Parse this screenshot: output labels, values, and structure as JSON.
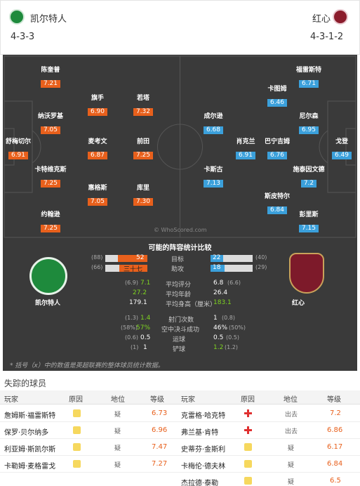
{
  "header": {
    "home_name": "凯尔特人",
    "home_formation": "4-3-3",
    "away_name": "红心",
    "away_formation": "4-3-1-2"
  },
  "pitch": {
    "home_players": [
      {
        "name": "陈奎普",
        "rating": "7.21"
      },
      {
        "name": "旗手",
        "rating": "6.90"
      },
      {
        "name": "若塔",
        "rating": "7.32"
      },
      {
        "name": "纳沃罗基",
        "rating": "7.05"
      },
      {
        "name": "舒梅切尔",
        "rating": "6.91"
      },
      {
        "name": "麦考文",
        "rating": "6.87"
      },
      {
        "name": "前田",
        "rating": "7.25"
      },
      {
        "name": "卡特维克斯",
        "rating": "7.25"
      },
      {
        "name": "惠格斯",
        "rating": "7.05"
      },
      {
        "name": "库里",
        "rating": "7.30"
      },
      {
        "name": "约翰逊",
        "rating": "7.25"
      }
    ],
    "away_players": [
      {
        "name": "福雷斯特",
        "rating": "6.71"
      },
      {
        "name": "卡图姆",
        "rating": "6.46"
      },
      {
        "name": "成尔逊",
        "rating": "6.68"
      },
      {
        "name": "尼尔森",
        "rating": "6.95"
      },
      {
        "name": "肖克兰",
        "rating": "6.91"
      },
      {
        "name": "巴宁吉姆",
        "rating": "6.76"
      },
      {
        "name": "戈登",
        "rating": "6.49"
      },
      {
        "name": "卡斯古",
        "rating": "7.13"
      },
      {
        "name": "施泰因文德",
        "rating": "7.2"
      },
      {
        "name": "斯皮特尔",
        "rating": "6.84"
      },
      {
        "name": "彭里斯",
        "rating": "7.15"
      }
    ],
    "watermark": "© WhoScored.com"
  },
  "stats": {
    "title": "可能的阵容统计比较",
    "home_team": "凯尔特人",
    "away_team": "红心",
    "goals": {
      "label": "目标",
      "home_bracket": "(88)",
      "home": "52",
      "away": "22",
      "away_bracket": "(40)",
      "home_frac": 0.7,
      "away_frac": 0.3
    },
    "assists": {
      "label": "助攻",
      "home_bracket": "(66)",
      "home": "三十七",
      "away": "18",
      "away_bracket": "(29)",
      "home_frac": 0.67,
      "away_frac": 0.33
    },
    "rows1": [
      {
        "home_bracket": "(6.9)",
        "home": "7.1",
        "label": "平均评分",
        "away": "6.8",
        "away_bracket": "(6.6)"
      },
      {
        "home_bracket": "",
        "home": "27.2",
        "label": "平均年龄",
        "away": "26.4",
        "away_bracket": ""
      },
      {
        "home_bracket": "",
        "home": "179.1",
        "label": "平均身高（厘米）",
        "away": "183.1",
        "away_bracket": ""
      }
    ],
    "rows2": [
      {
        "home_bracket": "(1.3)",
        "home": "1.4",
        "label": "射门次数",
        "away": "1",
        "away_bracket": "(0.8)"
      },
      {
        "home_bracket": "(58%)",
        "home": "57%",
        "label": "空中决斗成功",
        "away": "46%",
        "away_bracket": "(50%)"
      },
      {
        "home_bracket": "(0.6)",
        "home": "0.5",
        "label": "运球",
        "away": "0.5",
        "away_bracket": "(0.5)"
      },
      {
        "home_bracket": "(1)",
        "home": "1",
        "label": "铲球",
        "away": "1.2",
        "away_bracket": "(1.2)"
      }
    ],
    "footnote": "* 括号（x）中的数值是英超联赛的整体球员统计数据。",
    "colors": {
      "home": "#e8601c",
      "away": "#3ba0db"
    }
  },
  "missing": {
    "title": "失踪的球员",
    "headers": {
      "player": "玩家",
      "reason": "原因",
      "status": "地位",
      "rating": "等级"
    },
    "home": [
      {
        "name": "詹姆斯·福雷斯特",
        "reason": "doubt-icon",
        "status": "疑",
        "rating": "6.73"
      },
      {
        "name": "保罗·贝尔纳多",
        "reason": "doubt-icon",
        "status": "疑",
        "rating": "6.96"
      },
      {
        "name": "利亚姆·斯凯尔斯",
        "reason": "doubt-icon",
        "status": "疑",
        "rating": "7.47"
      },
      {
        "name": "卡勒姆·麦格雷戈",
        "reason": "doubt-icon",
        "status": "疑",
        "rating": "7.27"
      }
    ],
    "away": [
      {
        "name": "克雷格·哈克特",
        "reason": "injury-icon",
        "status": "出去",
        "rating": "7.2"
      },
      {
        "name": "弗兰基·肯特",
        "reason": "injury-icon",
        "status": "出去",
        "rating": "6.86"
      },
      {
        "name": "史蒂芬·金斯利",
        "reason": "doubt-icon",
        "status": "疑",
        "rating": "6.17"
      },
      {
        "name": "卡梅伦·德夫林",
        "reason": "doubt-icon",
        "status": "疑",
        "rating": "6.84"
      },
      {
        "name": "杰拉德·泰勒",
        "reason": "doubt-icon",
        "status": "疑",
        "rating": "6.5"
      }
    ]
  }
}
